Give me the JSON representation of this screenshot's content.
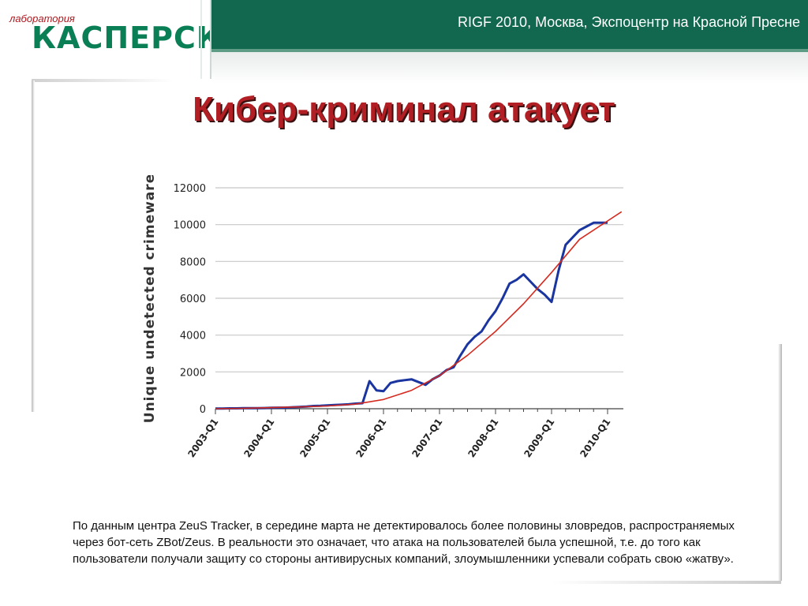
{
  "header": {
    "logo_top": "лаборатория",
    "logo_main": "КАСПЕРСКОГО",
    "event": "RIGF 2010, Москва, Экспоцентр на Красной Пресне"
  },
  "slide": {
    "title": "Кибер-криминал атакует",
    "caption": "По данным центра ZeuS Tracker, в середине марта не детектировалось более половины зловредов, распространяемых через бот-сеть ZBot/Zeus. В реальности это означает, что атака на пользователей была успешной, т.е. до того как пользователи получали защиту со стороны антивирусных компаний, злоумышленники успевали собрать свою «жатву»."
  },
  "colors": {
    "header": "#11684f",
    "title": "#b11f24",
    "series": "#1a35a0",
    "trend": "#d42a1f"
  },
  "chart_data": {
    "type": "line",
    "title": "",
    "ylabel": "Unique undetected crimeware",
    "xlabel": "",
    "ylim": [
      0,
      12000
    ],
    "yticks": [
      0,
      2000,
      4000,
      6000,
      8000,
      10000,
      12000
    ],
    "xticks": [
      "2003-Q1",
      "2004-Q1",
      "2005-Q1",
      "2006-Q1",
      "2007-Q1",
      "2008-Q1",
      "2009-Q1",
      "2010-Q1"
    ],
    "grid": true,
    "series": [
      {
        "style": "blue-line",
        "x": [
          0,
          0.5,
          1,
          1.5,
          2,
          2.5,
          3,
          3.5,
          4,
          4.5,
          5,
          5.5,
          6,
          6.5,
          7,
          7.5,
          8,
          8.5,
          9,
          9.5,
          10,
          10.5,
          11,
          11.5,
          12,
          12.5,
          13,
          13.5,
          14,
          14.5,
          15,
          15.5,
          16,
          16.5,
          17,
          17.5,
          18,
          18.5,
          19,
          19.5,
          20,
          20.5,
          21,
          21.5,
          22,
          22.5,
          23,
          23.5,
          24,
          24.5,
          25,
          25.5,
          26,
          26.5,
          27,
          27.5,
          28
        ],
        "values": [
          10,
          10,
          20,
          20,
          30,
          30,
          30,
          40,
          50,
          60,
          60,
          80,
          100,
          120,
          150,
          160,
          180,
          200,
          220,
          240,
          280,
          300,
          1500,
          1000,
          950,
          1400,
          1500,
          1550,
          1600,
          1450,
          1300,
          1600,
          1800,
          2100,
          2250,
          2900,
          3500,
          3900,
          4200,
          4800,
          5300,
          6000,
          6800,
          7000,
          7300,
          6900,
          6500,
          6200,
          5800,
          7500,
          8900,
          9300,
          9700,
          9900,
          10100,
          10100,
          10100
        ]
      },
      {
        "style": "red-trend",
        "x": [
          0,
          2,
          4,
          6,
          8,
          10,
          12,
          14,
          16,
          18,
          20,
          22,
          24,
          26,
          28,
          29
        ],
        "values": [
          0,
          20,
          60,
          100,
          150,
          250,
          500,
          1000,
          1800,
          2900,
          4200,
          5700,
          7400,
          9200,
          10200,
          10700
        ]
      }
    ]
  }
}
